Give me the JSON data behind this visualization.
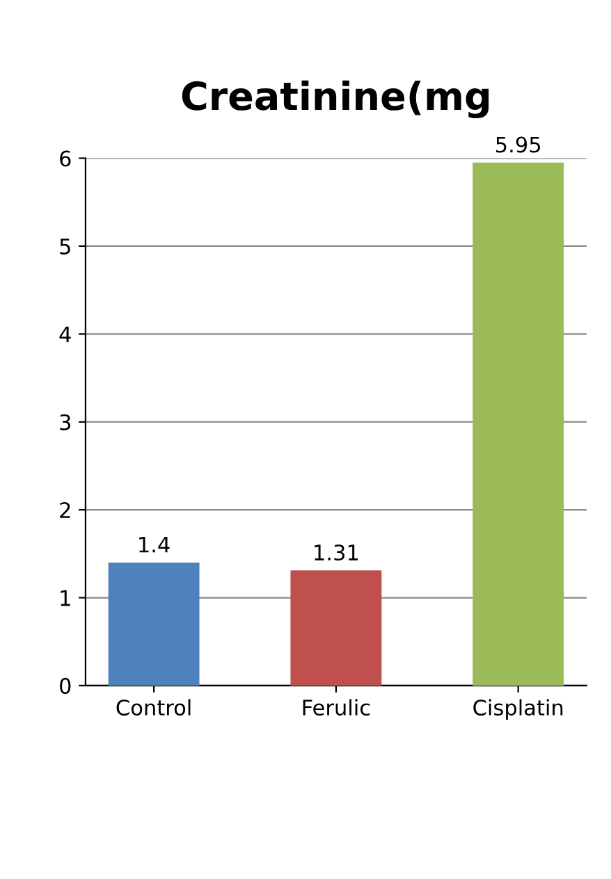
{
  "chart_data": {
    "type": "bar",
    "title": "Creatinine(mg",
    "categories": [
      "Control",
      "Ferulic",
      "Cisplatin"
    ],
    "values": [
      1.4,
      1.31,
      5.95
    ],
    "colors": [
      "#4f81bd",
      "#c0504d",
      "#9bbb59"
    ],
    "ylim": [
      0,
      6
    ],
    "yticks": [
      0,
      1,
      2,
      3,
      4,
      5,
      6
    ],
    "grid": "y",
    "data_labels": true
  }
}
